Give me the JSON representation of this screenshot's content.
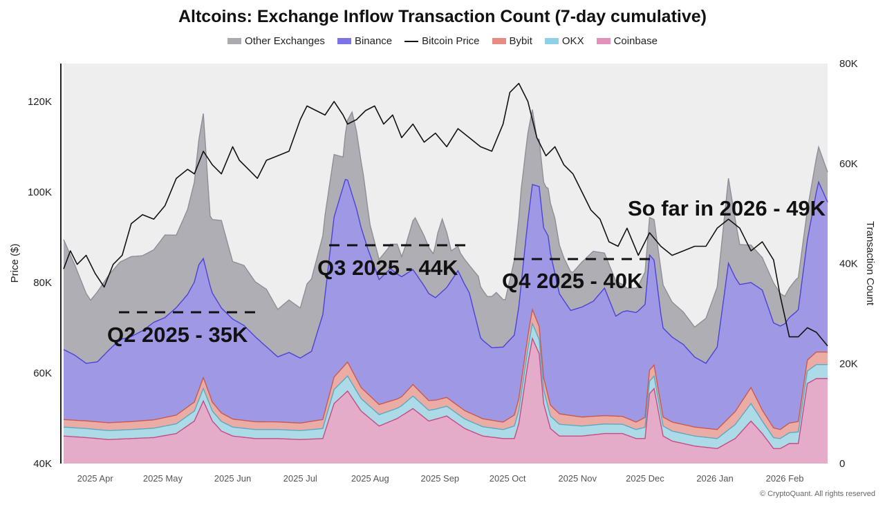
{
  "chart_data": {
    "type": "area",
    "title": "Altcoins: Exchange Inflow Transaction Count (7-day cumulative)",
    "xlabel": "",
    "ylabel_left": "Price ($)",
    "ylabel_right": "Transaction Count",
    "y_left_range": [
      40000,
      127000
    ],
    "y_right_range": [
      0,
      80000
    ],
    "y_left_ticks": [
      "40K",
      "60K",
      "80K",
      "100K",
      "120K"
    ],
    "y_left_tick_values": [
      40000,
      60000,
      80000,
      100000,
      120000
    ],
    "y_right_ticks": [
      "0",
      "20K",
      "40K",
      "60K",
      "80K"
    ],
    "y_right_tick_values": [
      0,
      20000,
      40000,
      60000,
      80000
    ],
    "x_ticks": [
      "2025 Apr",
      "2025 May",
      "2025 Jun",
      "2025 Jul",
      "2025 Aug",
      "2025 Sep",
      "2025 Oct",
      "2025 Nov",
      "2025 Dec",
      "2026 Jan",
      "2026 Feb"
    ],
    "x_tick_days": [
      14,
      44,
      75,
      105,
      136,
      167,
      197,
      228,
      258,
      289,
      320
    ],
    "x_range_days": [
      0,
      339
    ],
    "x_unit": "days since 2025-03-18",
    "legend_position": "top-center",
    "grid": false,
    "stack_order": [
      "Coinbase",
      "OKX",
      "Bybit",
      "Binance",
      "Other Exchanges"
    ],
    "legend_order": [
      "Other Exchanges",
      "Binance",
      "Bitcoin Price",
      "Bybit",
      "OKX",
      "Coinbase"
    ],
    "series": [
      {
        "name": "Coinbase",
        "axis": "right",
        "color": "#e3a8c6",
        "edge": "#c54b83",
        "x": [
          0,
          10,
          20,
          30,
          40,
          50,
          58,
          62,
          66,
          70,
          75,
          85,
          95,
          105,
          115,
          120,
          126,
          132,
          140,
          148,
          155,
          162,
          170,
          178,
          186,
          195,
          200,
          202,
          206,
          208,
          211,
          213,
          216,
          220,
          230,
          240,
          248,
          254,
          258,
          260,
          262,
          266,
          270,
          280,
          290,
          298,
          305,
          310,
          315,
          318,
          322,
          326,
          330,
          334,
          339
        ],
        "values": [
          5500,
          5200,
          4800,
          5000,
          5200,
          6000,
          8500,
          12500,
          8500,
          6500,
          5500,
          5000,
          5000,
          4800,
          5000,
          12000,
          14500,
          10500,
          7500,
          9000,
          11000,
          8500,
          9500,
          7000,
          5500,
          5000,
          5000,
          8000,
          20000,
          25000,
          22000,
          12000,
          7000,
          5500,
          5500,
          6000,
          6000,
          5000,
          5000,
          14000,
          15000,
          5500,
          4500,
          3500,
          3000,
          5000,
          8500,
          6000,
          3000,
          3000,
          4000,
          4000,
          16000,
          17000,
          17000
        ]
      },
      {
        "name": "OKX",
        "axis": "right",
        "color": "#a8d8e6",
        "edge": "#58a9c2",
        "x": [
          0,
          30,
          58,
          62,
          66,
          75,
          105,
          115,
          120,
          126,
          132,
          150,
          155,
          165,
          195,
          200,
          204,
          208,
          212,
          216,
          230,
          254,
          260,
          262,
          266,
          290,
          300,
          305,
          310,
          318,
          330,
          334,
          339
        ],
        "values": [
          1800,
          1800,
          2000,
          2500,
          2000,
          1800,
          1800,
          2000,
          2800,
          3000,
          2500,
          2000,
          2500,
          2000,
          1800,
          2500,
          2800,
          3000,
          2800,
          2500,
          2000,
          1800,
          2500,
          2500,
          2000,
          2000,
          3000,
          3500,
          2500,
          2000,
          2500,
          2800,
          2800
        ]
      },
      {
        "name": "Bybit",
        "axis": "right",
        "color": "#eaa8a0",
        "edge": "#c9584d",
        "x": [
          0,
          30,
          58,
          62,
          66,
          75,
          105,
          115,
          120,
          126,
          132,
          150,
          155,
          165,
          195,
          200,
          204,
          208,
          212,
          216,
          230,
          254,
          260,
          262,
          266,
          290,
          300,
          305,
          310,
          318,
          330,
          334,
          339
        ],
        "values": [
          1500,
          1600,
          1800,
          2200,
          1800,
          1600,
          1500,
          1800,
          2500,
          2800,
          2200,
          1800,
          2300,
          1800,
          1500,
          2200,
          2500,
          2800,
          2500,
          2200,
          1800,
          1500,
          2200,
          2200,
          1800,
          1800,
          2800,
          3200,
          2200,
          1800,
          2200,
          2500,
          2500
        ]
      },
      {
        "name": "Binance",
        "axis": "right",
        "color": "#9a94e4",
        "edge": "#4a42d8",
        "x": [
          0,
          5,
          10,
          15,
          20,
          25,
          30,
          35,
          40,
          45,
          50,
          55,
          60,
          65,
          70,
          75,
          80,
          85,
          90,
          95,
          100,
          105,
          110,
          115,
          120,
          125,
          130,
          135,
          140,
          145,
          150,
          155,
          160,
          165,
          170,
          175,
          180,
          185,
          190,
          195,
          200,
          205,
          210,
          215,
          220,
          225,
          230,
          235,
          240,
          245,
          250,
          255,
          260,
          265,
          270,
          275,
          280,
          285,
          290,
          295,
          300,
          305,
          310,
          315,
          320,
          325,
          330,
          335,
          339
        ],
        "values": [
          14000,
          13000,
          11500,
          12000,
          14500,
          16500,
          17000,
          18000,
          19500,
          20000,
          21500,
          22500,
          25000,
          22000,
          21000,
          20000,
          19000,
          17000,
          15000,
          13000,
          14000,
          13000,
          14000,
          21000,
          32000,
          37000,
          34000,
          29000,
          25000,
          26500,
          24000,
          23000,
          22000,
          20500,
          22000,
          27000,
          24000,
          16000,
          14500,
          15000,
          16000,
          22000,
          27000,
          32000,
          24000,
          21000,
          22000,
          23000,
          25500,
          20000,
          21500,
          22000,
          23000,
          18000,
          17000,
          16000,
          14000,
          13000,
          16500,
          31000,
          24000,
          21000,
          24000,
          21000,
          20500,
          22000,
          24000,
          34000,
          30000
        ]
      },
      {
        "name": "Other Exchanges",
        "axis": "right",
        "color": "#aaaab0",
        "edge": "#8e8e96",
        "x": [
          0,
          5,
          10,
          12,
          15,
          20,
          25,
          30,
          35,
          40,
          45,
          50,
          55,
          58,
          60,
          62,
          65,
          70,
          75,
          80,
          85,
          90,
          95,
          100,
          105,
          108,
          112,
          116,
          120,
          124,
          126,
          128,
          130,
          133,
          136,
          140,
          144,
          148,
          150,
          152,
          156,
          160,
          164,
          166,
          168,
          170,
          172,
          176,
          180,
          184,
          188,
          192,
          196,
          200,
          203,
          206,
          208,
          210,
          214,
          218,
          222,
          226,
          230,
          235,
          240,
          245,
          250,
          255,
          260,
          265,
          270,
          275,
          280,
          285,
          290,
          295,
          300,
          305,
          310,
          315,
          320,
          325,
          330,
          335,
          339
        ],
        "values": [
          22000,
          18000,
          14000,
          12500,
          14000,
          15000,
          15500,
          16000,
          15000,
          14500,
          16500,
          14500,
          17000,
          20000,
          25000,
          29000,
          14000,
          17500,
          11500,
          12000,
          11000,
          11500,
          9500,
          10500,
          10000,
          14000,
          15000,
          16000,
          12500,
          6000,
          12000,
          16500,
          15500,
          12000,
          6000,
          4000,
          4500,
          6000,
          4000,
          6000,
          11000,
          10000,
          8500,
          12500,
          14500,
          11000,
          6000,
          4500,
          5500,
          10500,
          9500,
          11000,
          9000,
          15000,
          19000,
          17500,
          15000,
          9500,
          9000,
          11000,
          8500,
          7500,
          9000,
          10000,
          7000,
          7000,
          4500,
          5000,
          7500,
          9000,
          7000,
          6500,
          6000,
          9000,
          12000,
          17000,
          8000,
          7500,
          6500,
          8000,
          5500,
          6500,
          6000,
          7000,
          6000
        ]
      }
    ],
    "price_series": {
      "name": "Bitcoin Price",
      "axis": "left",
      "color": "#111111",
      "x": [
        0,
        3,
        6,
        10,
        14,
        18,
        22,
        26,
        30,
        35,
        40,
        45,
        50,
        55,
        58,
        62,
        66,
        70,
        75,
        78,
        82,
        86,
        90,
        95,
        100,
        105,
        108,
        112,
        116,
        120,
        124,
        126,
        130,
        134,
        138,
        142,
        146,
        150,
        155,
        160,
        165,
        170,
        175,
        180,
        185,
        190,
        195,
        198,
        202,
        206,
        210,
        214,
        218,
        222,
        226,
        230,
        234,
        238,
        242,
        246,
        250,
        255,
        260,
        265,
        270,
        275,
        280,
        285,
        290,
        295,
        300,
        305,
        310,
        315,
        318,
        322,
        326,
        330,
        334,
        339
      ],
      "values": [
        83000,
        87000,
        84000,
        86000,
        82000,
        79000,
        84000,
        86000,
        93000,
        95000,
        94000,
        97000,
        103000,
        105000,
        104000,
        109000,
        106000,
        104000,
        110000,
        107000,
        105000,
        103000,
        107000,
        108000,
        109000,
        116000,
        119000,
        118000,
        117000,
        120000,
        117000,
        115000,
        116000,
        118000,
        119000,
        115000,
        117000,
        112000,
        115000,
        111000,
        113000,
        110000,
        114000,
        112000,
        110000,
        109000,
        115000,
        122000,
        124000,
        120000,
        112000,
        108000,
        110000,
        106000,
        104000,
        100000,
        96000,
        94000,
        89000,
        88000,
        92000,
        86000,
        91000,
        88000,
        86000,
        87000,
        88000,
        88000,
        92000,
        94000,
        92000,
        87000,
        89000,
        85000,
        77000,
        68000,
        68000,
        70000,
        69000,
        66000
      ]
    },
    "annotations": [
      {
        "text": "Q2 2025 - 35K",
        "value": 35000
      },
      {
        "text": "Q3 2025 - 44K",
        "value": 44000
      },
      {
        "text": "Q4 2025 - 40K",
        "value": 40000
      },
      {
        "text": "So far in 2026 - 49K",
        "value": 49000
      }
    ]
  },
  "footer": {
    "copyright": "© CryptoQuant. All rights reserved"
  }
}
